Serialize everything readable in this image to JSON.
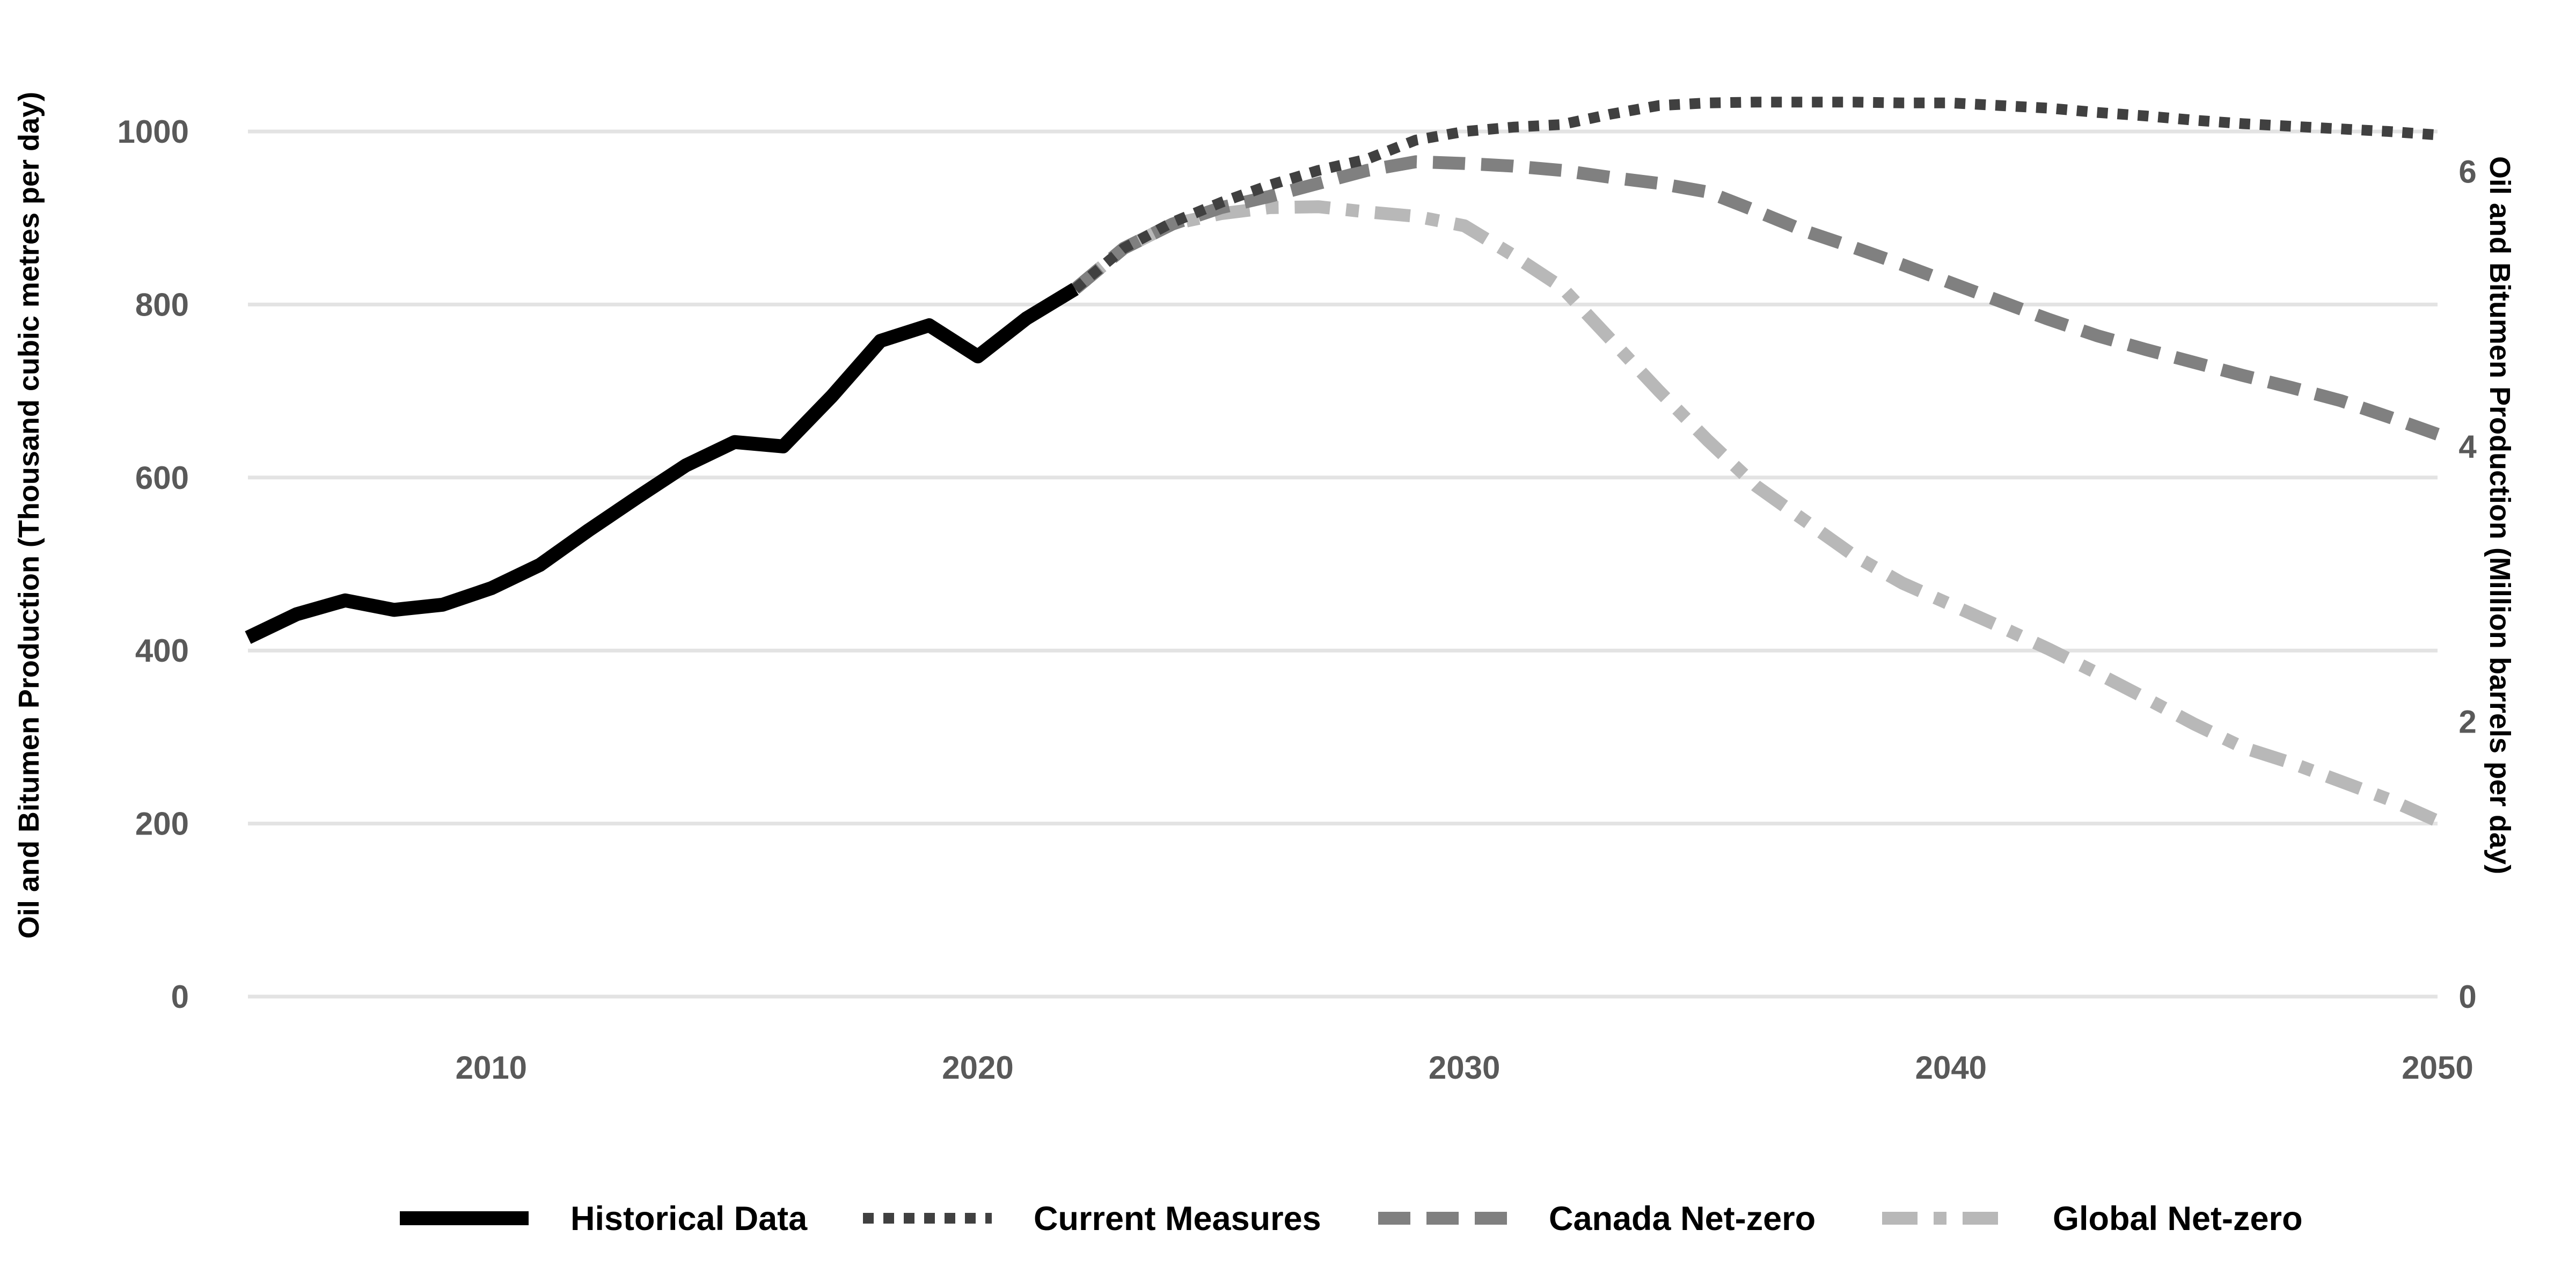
{
  "chart_data": {
    "type": "line",
    "title": "",
    "ylabel_left": "Oil and Bitumen Production (Thousand cubic metres per day)",
    "ylabel_right": "Oil and Bitumen Production (Million barrels per day)",
    "xlim": [
      2005,
      2050
    ],
    "ylim_left": [
      0,
      1000
    ],
    "ylim_right": [
      0,
      6.29
    ],
    "x_ticks": [
      2010,
      2020,
      2030,
      2040,
      2050
    ],
    "y_ticks_left": [
      0,
      200,
      400,
      600,
      800,
      1000
    ],
    "y_ticks_right": [
      0,
      2,
      4,
      6
    ],
    "grid": "horizontal",
    "legend_position": "bottom",
    "series": [
      {
        "name": "Historical Data",
        "style": "solid",
        "color": "#000000",
        "points": [
          [
            2005,
            415
          ],
          [
            2006,
            442
          ],
          [
            2007,
            458
          ],
          [
            2008,
            447
          ],
          [
            2009,
            453
          ],
          [
            2010,
            472
          ],
          [
            2011,
            499
          ],
          [
            2012,
            539
          ],
          [
            2013,
            577
          ],
          [
            2014,
            614
          ],
          [
            2015,
            641
          ],
          [
            2016,
            636
          ],
          [
            2017,
            694
          ],
          [
            2018,
            758
          ],
          [
            2019,
            776
          ],
          [
            2020,
            740
          ],
          [
            2021,
            784
          ],
          [
            2022,
            818
          ]
        ]
      },
      {
        "name": "Current Measures",
        "style": "dotted",
        "color": "#404040",
        "points": [
          [
            2022,
            818
          ],
          [
            2023,
            865
          ],
          [
            2024,
            895
          ],
          [
            2025,
            918
          ],
          [
            2026,
            938
          ],
          [
            2027,
            955
          ],
          [
            2028,
            968
          ],
          [
            2029,
            990
          ],
          [
            2030,
            1000
          ],
          [
            2031,
            1005
          ],
          [
            2032,
            1008
          ],
          [
            2033,
            1020
          ],
          [
            2034,
            1030
          ],
          [
            2035,
            1033
          ],
          [
            2036,
            1034
          ],
          [
            2037,
            1034
          ],
          [
            2038,
            1034
          ],
          [
            2039,
            1033
          ],
          [
            2040,
            1033
          ],
          [
            2041,
            1030
          ],
          [
            2042,
            1027
          ],
          [
            2043,
            1022
          ],
          [
            2044,
            1018
          ],
          [
            2045,
            1013
          ],
          [
            2046,
            1009
          ],
          [
            2047,
            1006
          ],
          [
            2048,
            1003
          ],
          [
            2049,
            1000
          ],
          [
            2050,
            996
          ]
        ]
      },
      {
        "name": "Canada Net-zero",
        "style": "dashed",
        "color": "#808080",
        "points": [
          [
            2022,
            818
          ],
          [
            2023,
            865
          ],
          [
            2024,
            893
          ],
          [
            2025,
            912
          ],
          [
            2026,
            925
          ],
          [
            2027,
            940
          ],
          [
            2028,
            955
          ],
          [
            2029,
            965
          ],
          [
            2030,
            963
          ],
          [
            2031,
            960
          ],
          [
            2032,
            955
          ],
          [
            2033,
            947
          ],
          [
            2034,
            940
          ],
          [
            2035,
            930
          ],
          [
            2036,
            908
          ],
          [
            2037,
            885
          ],
          [
            2038,
            866
          ],
          [
            2039,
            846
          ],
          [
            2040,
            825
          ],
          [
            2041,
            804
          ],
          [
            2042,
            783
          ],
          [
            2043,
            764
          ],
          [
            2044,
            748
          ],
          [
            2045,
            733
          ],
          [
            2046,
            718
          ],
          [
            2047,
            704
          ],
          [
            2048,
            689
          ],
          [
            2049,
            670
          ],
          [
            2050,
            650
          ]
        ]
      },
      {
        "name": "Global Net-zero",
        "style": "dashdot",
        "color": "#b8b8b8",
        "points": [
          [
            2022,
            818
          ],
          [
            2023,
            865
          ],
          [
            2024,
            893
          ],
          [
            2025,
            905
          ],
          [
            2026,
            912
          ],
          [
            2027,
            913
          ],
          [
            2028,
            907
          ],
          [
            2029,
            902
          ],
          [
            2030,
            891
          ],
          [
            2031,
            857
          ],
          [
            2032,
            820
          ],
          [
            2033,
            760
          ],
          [
            2034,
            700
          ],
          [
            2035,
            643
          ],
          [
            2036,
            590
          ],
          [
            2037,
            550
          ],
          [
            2038,
            510
          ],
          [
            2039,
            478
          ],
          [
            2040,
            453
          ],
          [
            2041,
            428
          ],
          [
            2042,
            402
          ],
          [
            2043,
            374
          ],
          [
            2044,
            345
          ],
          [
            2045,
            315
          ],
          [
            2046,
            288
          ],
          [
            2047,
            270
          ],
          [
            2048,
            249
          ],
          [
            2049,
            228
          ],
          [
            2050,
            203
          ]
        ]
      }
    ]
  }
}
